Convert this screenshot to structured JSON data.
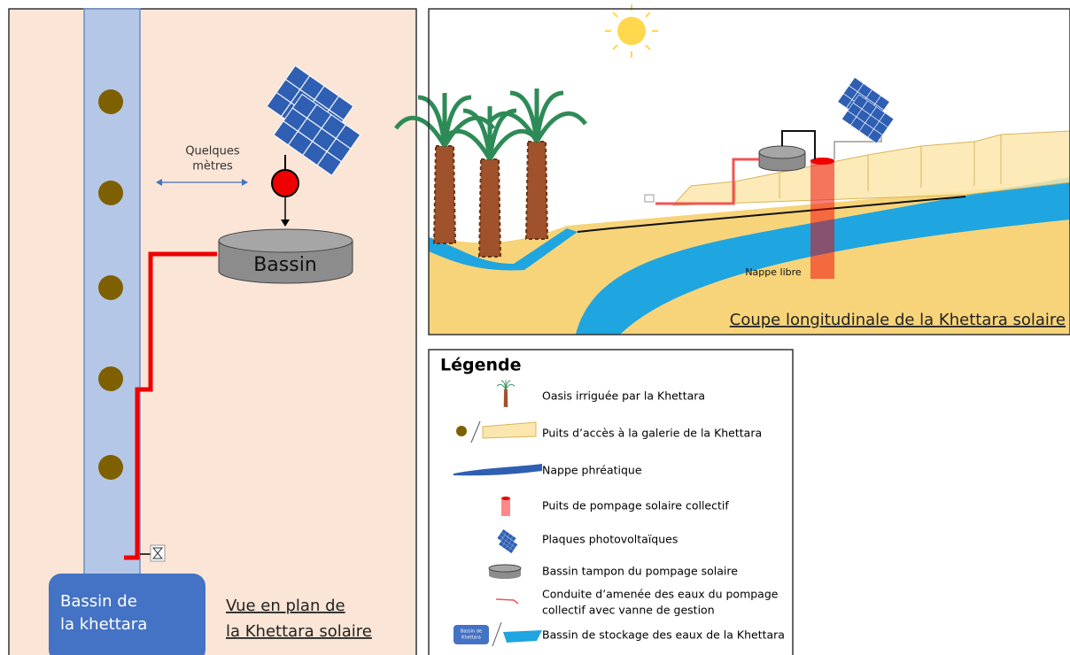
{
  "plan_view": {
    "distance_label": [
      "Quelques",
      "mètres"
    ],
    "basin": "Bassin",
    "khettara_basin": [
      "Bassin de",
      "la khettara"
    ],
    "caption": [
      "Vue en plan de",
      "la Khettara solaire"
    ]
  },
  "section_view": {
    "aquifer_label": "Nappe libre",
    "caption": "Coupe longitudinale de la Khettara solaire"
  },
  "legend": {
    "title": "Légende",
    "icon_label": [
      "Bassin de",
      "Khettara"
    ],
    "items": [
      "Oasis irriguée par la Khettara",
      "Puits d’accès à la galerie de la Khettara",
      "Nappe phréatique",
      "Puits de pompage solaire collectif",
      "Plaques photovoltaïques",
      "Bassin tampon du pompage solaire",
      [
        "Conduite d’amenée des eaux du pompage",
        "collectif avec vanne de gestion"
      ],
      "Bassin de stockage des eaux de la Khettara"
    ]
  }
}
